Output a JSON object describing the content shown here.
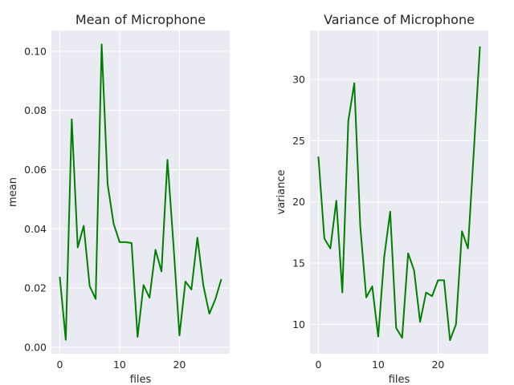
{
  "chart_data": [
    {
      "type": "line",
      "title": "Mean of Microphone",
      "xlabel": "files",
      "ylabel": "mean",
      "xlim": [
        -1.4,
        28.4
      ],
      "ylim": [
        -0.0022,
        0.107
      ],
      "xticks": [
        0,
        10,
        20
      ],
      "xtick_labels": [
        "0",
        "10",
        "20"
      ],
      "yticks": [
        0.0,
        0.02,
        0.04,
        0.06,
        0.08,
        0.1
      ],
      "ytick_labels": [
        "0.00",
        "0.02",
        "0.04",
        "0.06",
        "0.08",
        "0.10"
      ],
      "grid": true,
      "color": "#008000",
      "x": [
        0,
        1,
        2,
        3,
        4,
        5,
        6,
        7,
        8,
        9,
        10,
        11,
        12,
        13,
        14,
        15,
        16,
        17,
        18,
        19,
        20,
        21,
        22,
        23,
        24,
        25,
        26,
        27
      ],
      "series": [
        {
          "values": [
            0.0238,
            0.0025,
            0.077,
            0.0337,
            0.041,
            0.0206,
            0.0163,
            0.1023,
            0.055,
            0.0417,
            0.0355,
            0.0355,
            0.0352,
            0.0035,
            0.021,
            0.0167,
            0.0329,
            0.0256,
            0.0633,
            0.0347,
            0.004,
            0.0222,
            0.0195,
            0.037,
            0.0208,
            0.0113,
            0.0162,
            0.023
          ]
        }
      ]
    },
    {
      "type": "line",
      "title": "Variance of Microphone",
      "xlabel": "files",
      "ylabel": "variance",
      "xlim": [
        -1.4,
        28.4
      ],
      "ylim": [
        7.6,
        34.0
      ],
      "xticks": [
        0,
        10,
        20
      ],
      "xtick_labels": [
        "0",
        "10",
        "20"
      ],
      "yticks": [
        10,
        15,
        20,
        25,
        30
      ],
      "ytick_labels": [
        "10",
        "15",
        "20",
        "25",
        "30"
      ],
      "grid": true,
      "color": "#008000",
      "x": [
        0,
        1,
        2,
        3,
        4,
        5,
        6,
        7,
        8,
        9,
        10,
        11,
        12,
        13,
        14,
        15,
        16,
        17,
        18,
        19,
        20,
        21,
        22,
        23,
        24,
        25,
        26,
        27
      ],
      "series": [
        {
          "values": [
            23.7,
            17.0,
            16.2,
            20.1,
            12.6,
            26.6,
            29.7,
            18.0,
            12.2,
            13.1,
            9.0,
            15.5,
            19.2,
            9.7,
            8.9,
            15.8,
            14.4,
            10.2,
            12.6,
            12.3,
            13.6,
            13.6,
            8.7,
            10.0,
            17.6,
            16.2,
            24.3,
            32.7
          ]
        }
      ]
    }
  ]
}
